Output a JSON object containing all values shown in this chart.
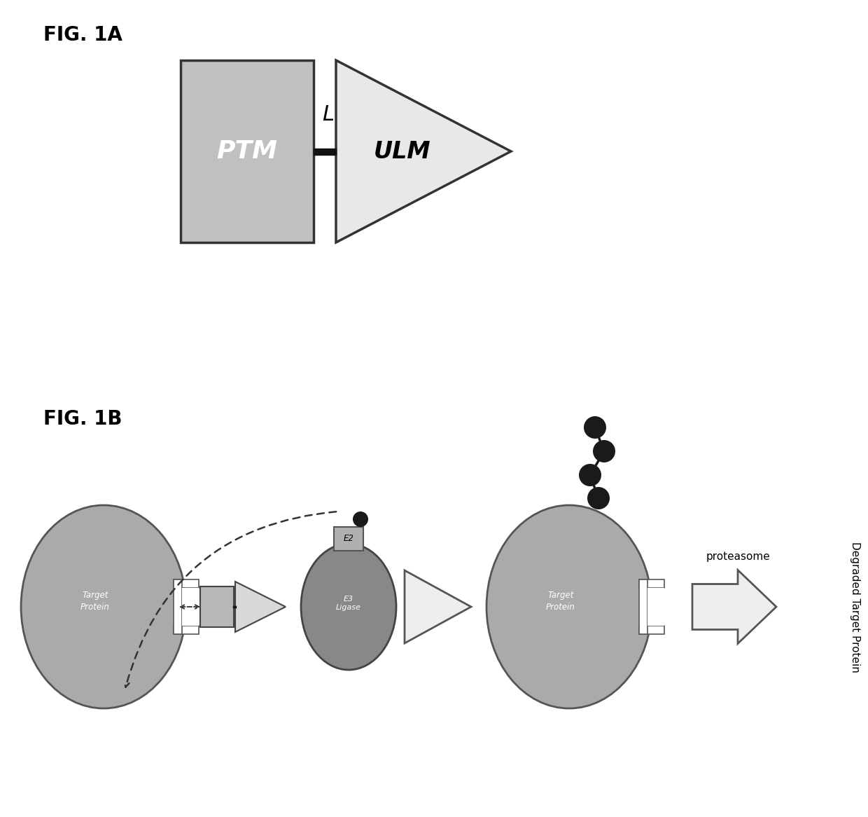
{
  "fig_label_1a": "FIG. 1A",
  "fig_label_1b": "FIG. 1B",
  "ptm_label": "PTM",
  "ulm_label": "ULM",
  "l_label": "L",
  "e2_label": "E2",
  "e3_label": "E3\nLigase",
  "target_protein_label": "Target\nProtein",
  "proteasome_label": "proteasome",
  "degraded_label": "Degraded Target Protein",
  "bg_color": "#ffffff",
  "ptm_fill": "#c0c0c0",
  "ptm_edge": "#333333",
  "ulm_fill": "#e8e8e8",
  "ulm_edge": "#333333",
  "e2_fill": "#b0b0b0",
  "e2_edge": "#555555",
  "e3_fill": "#888888",
  "e3_edge": "#444444",
  "target_fill": "#aaaaaa",
  "target_edge": "#555555",
  "dark_circle": "#1a1a1a",
  "arrow_color": "#333333",
  "linker_color": "#111111",
  "small_rect_fill": "#b8b8b8",
  "small_rect_edge": "#444444",
  "notch_fill": "#d8d8d8",
  "big_arrow_fill": "#eeeeee",
  "big_arrow_edge": "#555555"
}
